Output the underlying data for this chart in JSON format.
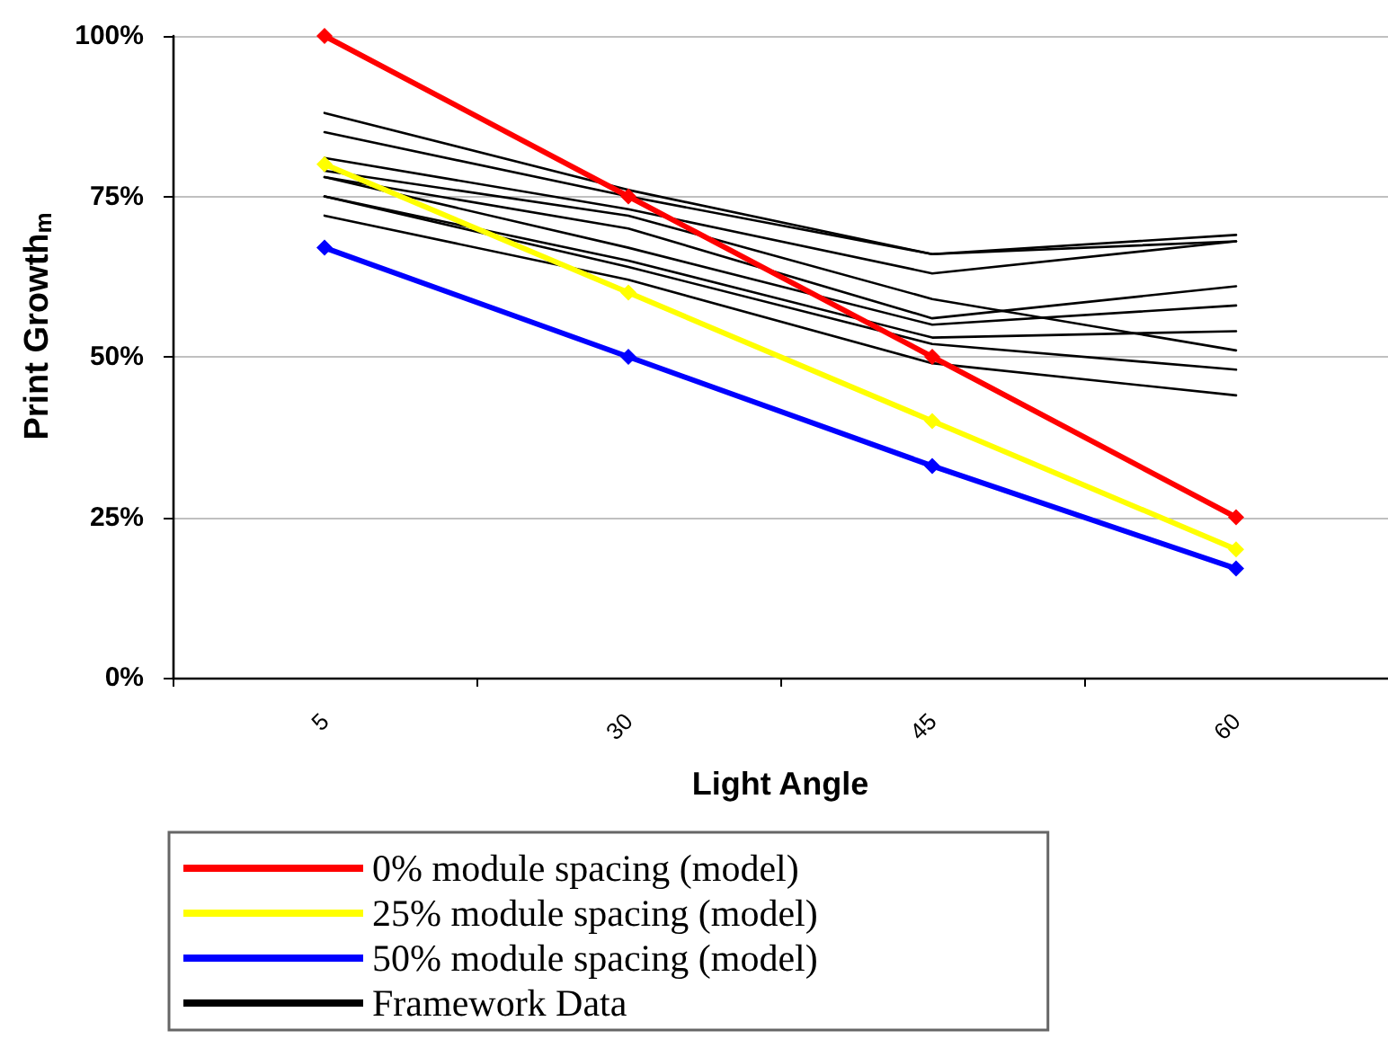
{
  "chart_data": {
    "type": "line",
    "xlabel": "Light Angle",
    "ylabel": "Print Growth$_{m}$",
    "categories": [
      "5",
      "30",
      "45",
      "60"
    ],
    "series": [
      {
        "name": "0% module spacing (model)",
        "color": "#ff0000",
        "marker": "diamond",
        "values": [
          100,
          75,
          50,
          25
        ]
      },
      {
        "name": "25% module spacing (model)",
        "color": "#ffff00",
        "marker": "diamond",
        "values": [
          80,
          60,
          40,
          20
        ]
      },
      {
        "name": "50% module spacing (model)",
        "color": "#0000ff",
        "marker": "diamond",
        "values": [
          67,
          50,
          33,
          17
        ]
      },
      {
        "name": "Framework Data",
        "color": "#000000",
        "values": [
          88,
          76,
          66,
          69
        ]
      },
      {
        "color": "#000000",
        "values": [
          85,
          75,
          66,
          68
        ]
      },
      {
        "color": "#000000",
        "values": [
          81,
          73,
          63,
          68
        ]
      },
      {
        "color": "#000000",
        "values": [
          79,
          72,
          59,
          51
        ]
      },
      {
        "color": "#000000",
        "values": [
          78,
          70,
          56,
          61
        ]
      },
      {
        "color": "#000000",
        "values": [
          78,
          67,
          55,
          58
        ]
      },
      {
        "color": "#000000",
        "values": [
          75,
          65,
          53,
          54
        ]
      },
      {
        "color": "#000000",
        "values": [
          75,
          64,
          52,
          48
        ]
      },
      {
        "color": "#000000",
        "values": [
          72,
          62,
          49,
          44
        ]
      }
    ],
    "ylim": [
      0,
      100
    ],
    "yticks": [
      {
        "value": 0,
        "label": "0%"
      },
      {
        "value": 25,
        "label": "25%"
      },
      {
        "value": 50,
        "label": "50%"
      },
      {
        "value": 75,
        "label": "75%"
      },
      {
        "value": 100,
        "label": "100%"
      }
    ],
    "grid": "y",
    "legend": "bottom left",
    "marker": "none",
    "line_style": "solid"
  }
}
